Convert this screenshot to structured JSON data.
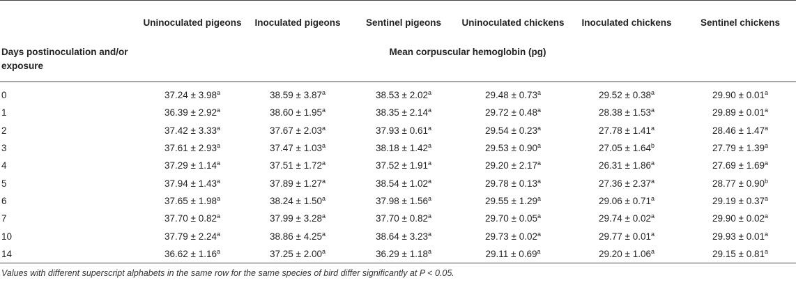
{
  "table": {
    "column_headers": [
      "Uninoculated pigeons",
      "Inoculated pigeons",
      "Sentinel pigeons",
      "Uninoculated chickens",
      "Inoculated chickens",
      "Sentinel chickens"
    ],
    "stub_header": "Days postinoculation and/or exposure",
    "measure_header": "Mean corpuscular hemoglobin (pg)",
    "rows": [
      {
        "day": "0",
        "cells": [
          [
            "37.24 ± 3.98",
            "a"
          ],
          [
            "38.59 ± 3.87",
            "a"
          ],
          [
            "38.53 ± 2.02",
            "a"
          ],
          [
            "29.48 ± 0.73",
            "a"
          ],
          [
            "29.52 ± 0.38",
            "a"
          ],
          [
            "29.90 ± 0.01",
            "a"
          ]
        ]
      },
      {
        "day": "1",
        "cells": [
          [
            "36.39 ± 2.92",
            "a"
          ],
          [
            "38.60 ± 1.95",
            "a"
          ],
          [
            "38.35 ± 2.14",
            "a"
          ],
          [
            "29.72 ± 0.48",
            "a"
          ],
          [
            "28.38 ± 1.53",
            "a"
          ],
          [
            "29.89 ± 0.01",
            "a"
          ]
        ]
      },
      {
        "day": "2",
        "cells": [
          [
            "37.42 ± 3.33",
            "a"
          ],
          [
            "37.67 ± 2.03",
            "a"
          ],
          [
            "37.93 ± 0.61",
            "a"
          ],
          [
            "29.54 ± 0.23",
            "a"
          ],
          [
            "27.78 ± 1.41",
            "a"
          ],
          [
            "28.46 ± 1.47",
            "a"
          ]
        ]
      },
      {
        "day": "3",
        "cells": [
          [
            "37.61 ± 2.93",
            "a"
          ],
          [
            "37.47 ± 1.03",
            "a"
          ],
          [
            "38.18 ± 1.42",
            "a"
          ],
          [
            "29.53 ± 0.90",
            "a"
          ],
          [
            "27.05 ± 1.64",
            "b"
          ],
          [
            "27.79 ± 1.39",
            "a"
          ]
        ]
      },
      {
        "day": "4",
        "cells": [
          [
            "37.29 ± 1.14",
            "a"
          ],
          [
            "37.51 ± 1.72",
            "a"
          ],
          [
            "37.52 ± 1.91",
            "a"
          ],
          [
            "29.20 ± 2.17",
            "a"
          ],
          [
            "26.31 ± 1.86",
            "a"
          ],
          [
            "27.69 ± 1.69",
            "a"
          ]
        ]
      },
      {
        "day": "5",
        "cells": [
          [
            "37.94 ± 1.43",
            "a"
          ],
          [
            "37.89 ± 1.27",
            "a"
          ],
          [
            "38.54 ± 1.02",
            "a"
          ],
          [
            "29.78 ± 0.13",
            "a"
          ],
          [
            "27.36 ± 2.37",
            "a"
          ],
          [
            "28.77 ± 0.90",
            "b"
          ]
        ]
      },
      {
        "day": "6",
        "cells": [
          [
            "37.65 ± 1.98",
            "a"
          ],
          [
            "38.24 ± 1.50",
            "a"
          ],
          [
            "37.98 ± 1.56",
            "a"
          ],
          [
            "29.55 ± 1.29",
            "a"
          ],
          [
            "29.06 ± 0.71",
            "a"
          ],
          [
            "29.19 ± 0.37",
            "a"
          ]
        ]
      },
      {
        "day": "7",
        "cells": [
          [
            "37.70 ± 0.82",
            "a"
          ],
          [
            "37.99 ± 3.28",
            "a"
          ],
          [
            "37.70 ± 0.82",
            "a"
          ],
          [
            "29.70 ± 0.05",
            "a"
          ],
          [
            "29.74 ± 0.02",
            "a"
          ],
          [
            "29.90 ± 0.02",
            "a"
          ]
        ]
      },
      {
        "day": "10",
        "cells": [
          [
            "37.79 ± 2.24",
            "a"
          ],
          [
            "38.86 ± 4.25",
            "a"
          ],
          [
            "38.64 ± 3.23",
            "a"
          ],
          [
            "29.73 ± 0.02",
            "a"
          ],
          [
            "29.77 ± 0.01",
            "a"
          ],
          [
            "29.93 ± 0.01",
            "a"
          ]
        ]
      },
      {
        "day": "14",
        "cells": [
          [
            "36.62 ± 1.16",
            "a"
          ],
          [
            "37.25 ± 2.00",
            "a"
          ],
          [
            "36.29 ± 1.18",
            "a"
          ],
          [
            "29.11 ± 0.69",
            "a"
          ],
          [
            "29.20 ± 1.06",
            "a"
          ],
          [
            "29.15 ± 0.81",
            "a"
          ]
        ]
      }
    ]
  },
  "footnote": "Values with different superscript alphabets in the same row for the same species of bird differ significantly at P < 0.05."
}
